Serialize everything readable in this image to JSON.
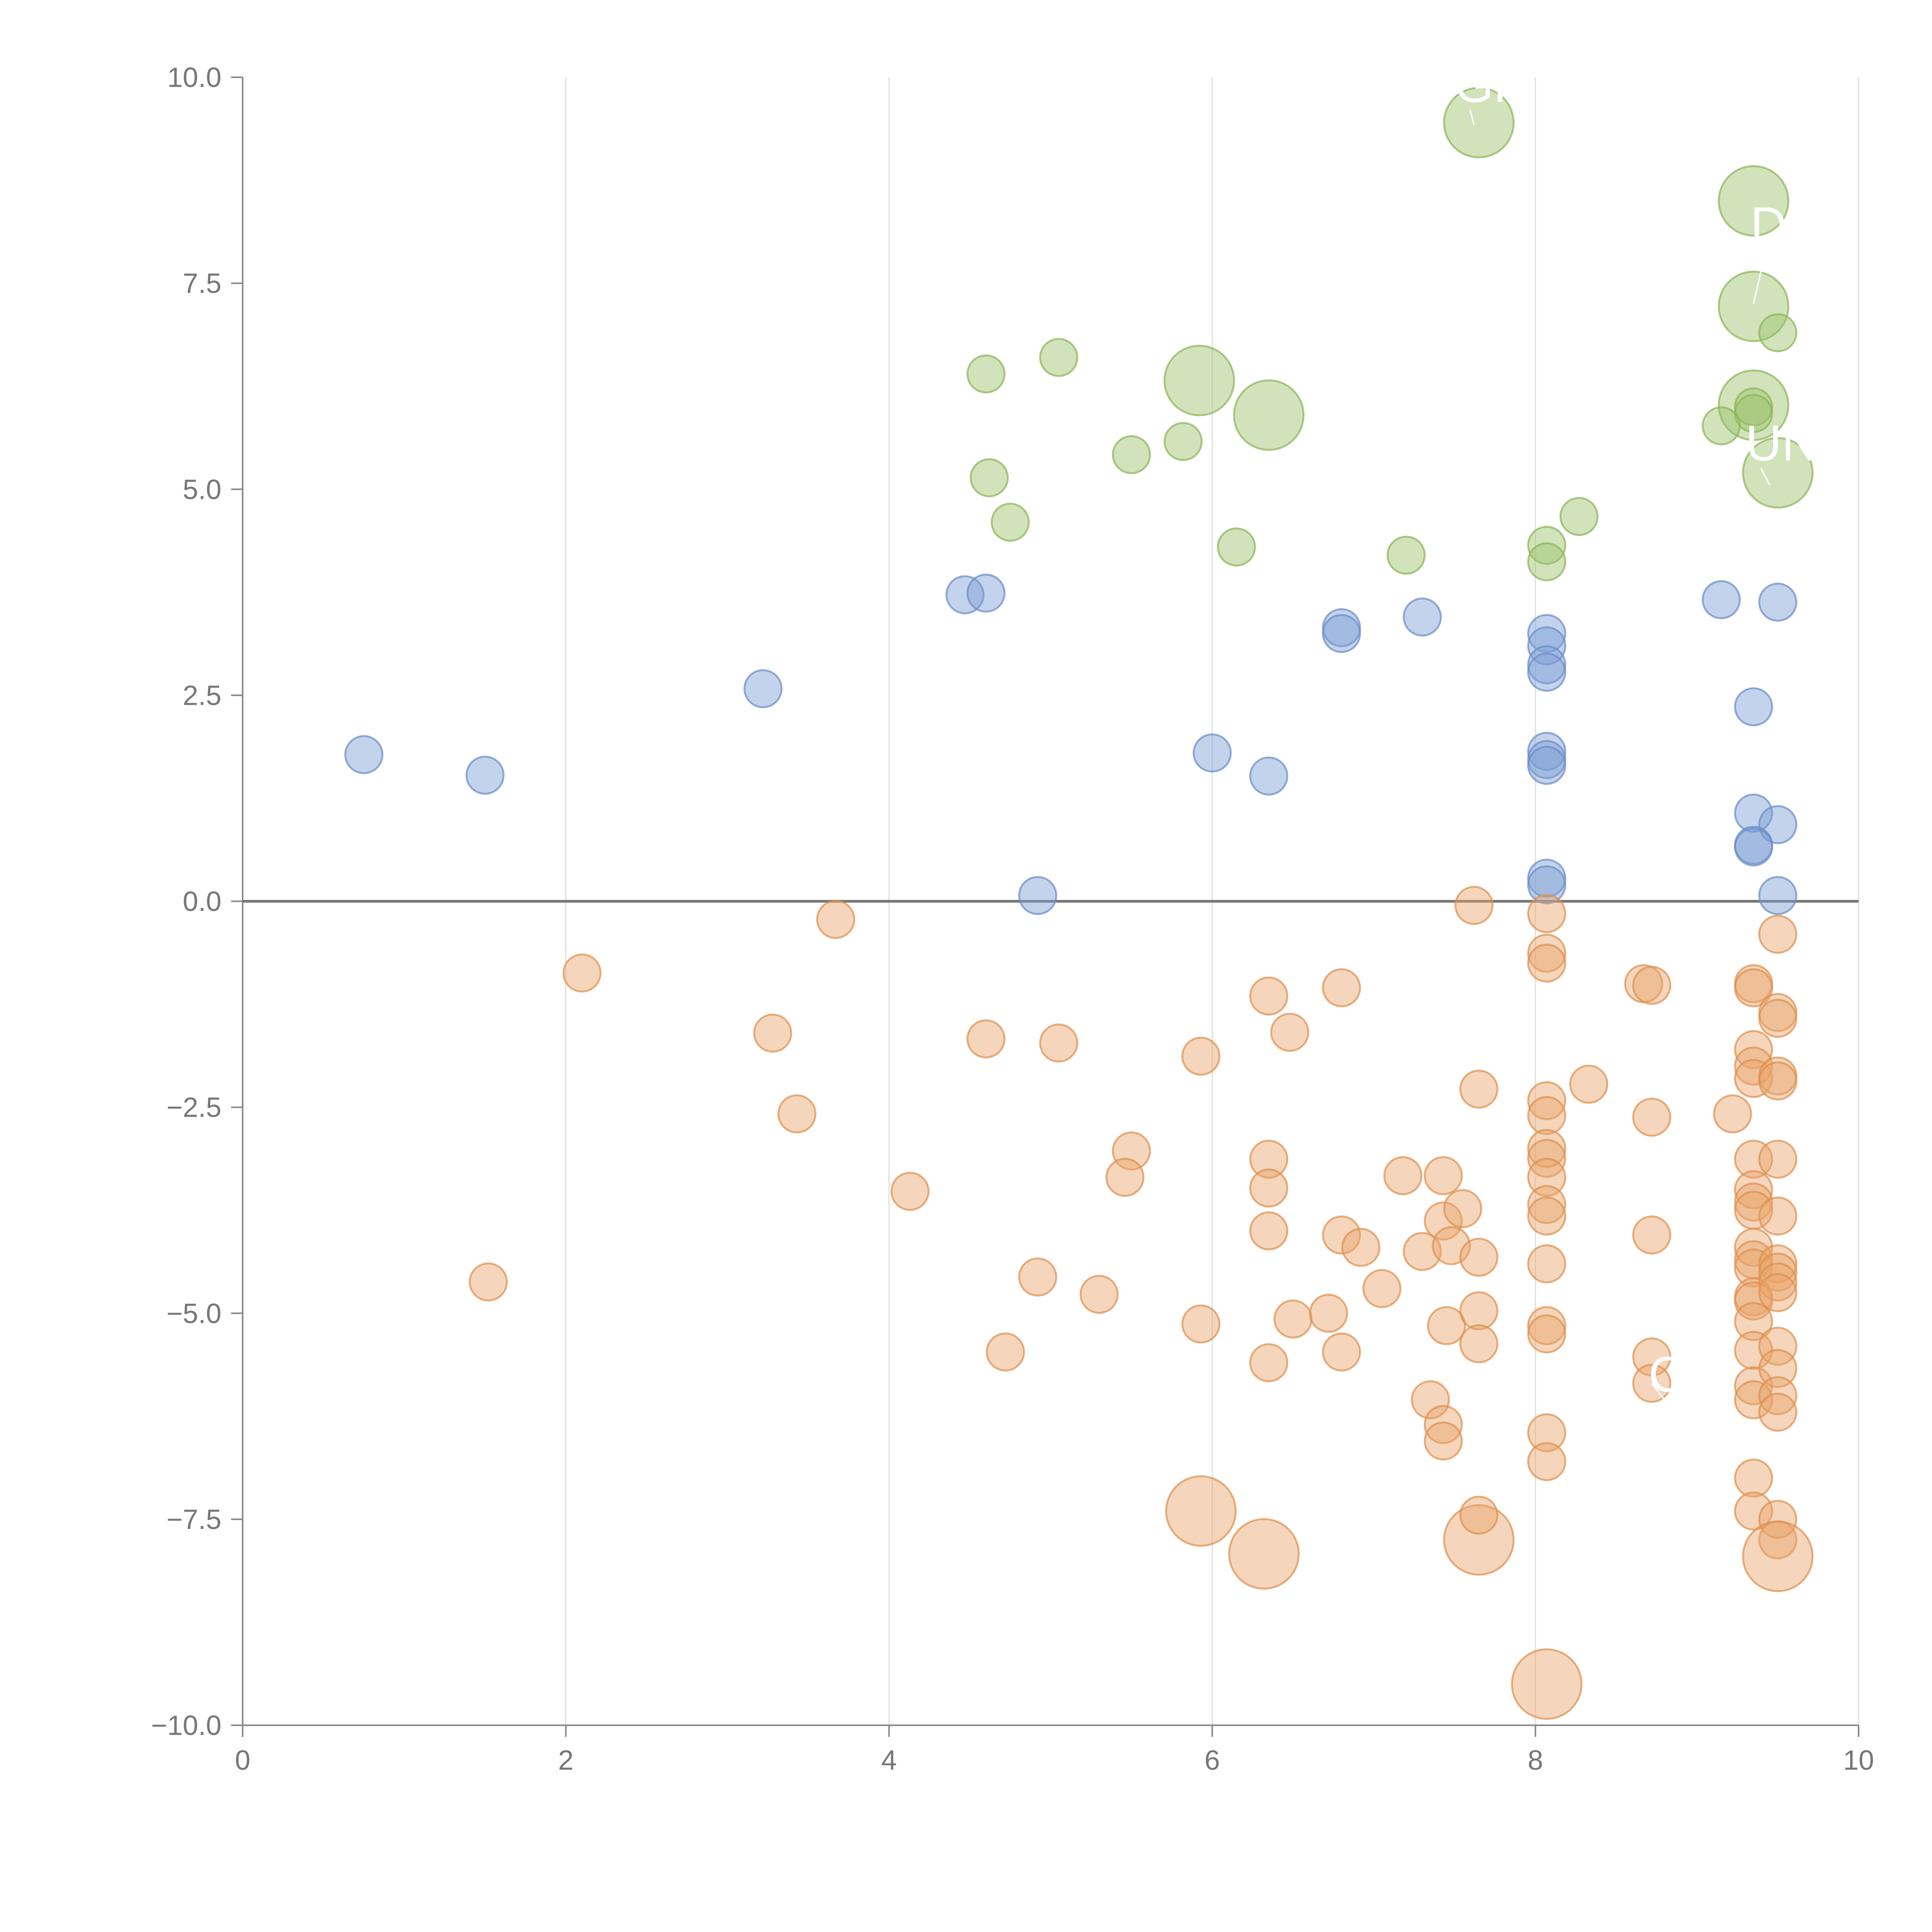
{
  "chart_data": {
    "type": "scatter",
    "title": "",
    "xlabel": "",
    "ylabel": "",
    "xlim": [
      0,
      10
    ],
    "ylim": [
      -10,
      10
    ],
    "grid": "vertical",
    "zero_line": true,
    "x_ticks": [
      {
        "value": 0,
        "label": "0"
      },
      {
        "value": 2,
        "label": "2"
      },
      {
        "value": 4,
        "label": "4"
      },
      {
        "value": 6,
        "label": "6"
      },
      {
        "value": 8,
        "label": "8"
      },
      {
        "value": 10,
        "label": "10"
      }
    ],
    "y_ticks": [
      {
        "value": 10,
        "label": "10.0"
      },
      {
        "value": 7.5,
        "label": "7.5"
      },
      {
        "value": 5,
        "label": "5.0"
      },
      {
        "value": 2.5,
        "label": "2.5"
      },
      {
        "value": 0,
        "label": "0.0"
      },
      {
        "value": -2.5,
        "label": "−2.5"
      },
      {
        "value": -5,
        "label": "−5.0"
      },
      {
        "value": -7.5,
        "label": "−7.5"
      },
      {
        "value": -10,
        "label": "−10.0"
      }
    ],
    "series": [
      {
        "name": "green",
        "color": "#9cc26a",
        "stroke": "#8ab356",
        "points": [
          [
            7.65,
            9.45,
            3
          ],
          [
            9.35,
            8.5,
            3
          ],
          [
            9.35,
            7.22,
            3
          ],
          [
            9.5,
            6.9,
            1
          ],
          [
            5.92,
            6.32,
            3
          ],
          [
            6.35,
            5.9,
            3
          ],
          [
            9.35,
            6.02,
            3
          ],
          [
            9.35,
            6.0,
            1
          ],
          [
            9.35,
            5.92,
            1
          ],
          [
            9.15,
            5.77,
            1
          ],
          [
            9.5,
            5.2,
            3
          ],
          [
            4.6,
            6.4,
            1
          ],
          [
            5.05,
            6.6,
            1
          ],
          [
            5.82,
            5.58,
            1
          ],
          [
            5.5,
            5.42,
            1
          ],
          [
            4.62,
            5.14,
            1
          ],
          [
            4.75,
            4.6,
            1
          ],
          [
            6.15,
            4.3,
            1
          ],
          [
            7.2,
            4.2,
            1
          ],
          [
            8.07,
            4.32,
            1
          ],
          [
            8.07,
            4.12,
            1
          ],
          [
            8.27,
            4.67,
            1
          ]
        ]
      },
      {
        "name": "blue",
        "color": "#7d9ed4",
        "stroke": "#6a8cc7",
        "points": [
          [
            0.75,
            1.78,
            1
          ],
          [
            1.5,
            1.53,
            1
          ],
          [
            3.22,
            2.58,
            1
          ],
          [
            4.47,
            3.72,
            1
          ],
          [
            4.6,
            3.74,
            1
          ],
          [
            4.92,
            0.07,
            1
          ],
          [
            6.0,
            1.8,
            1
          ],
          [
            6.35,
            1.52,
            1
          ],
          [
            6.8,
            3.32,
            1
          ],
          [
            6.8,
            3.25,
            1
          ],
          [
            7.3,
            3.45,
            1
          ],
          [
            8.07,
            3.25,
            1
          ],
          [
            8.07,
            3.1,
            1
          ],
          [
            8.07,
            2.87,
            1
          ],
          [
            8.07,
            2.78,
            1
          ],
          [
            8.07,
            1.82,
            1
          ],
          [
            8.07,
            1.72,
            1
          ],
          [
            8.07,
            1.65,
            1
          ],
          [
            8.07,
            0.28,
            1
          ],
          [
            8.07,
            0.2,
            1
          ],
          [
            9.15,
            3.66,
            1
          ],
          [
            9.5,
            3.63,
            1
          ],
          [
            9.35,
            2.36,
            1
          ],
          [
            9.35,
            1.07,
            1
          ],
          [
            9.5,
            0.93,
            1
          ],
          [
            9.35,
            0.68,
            1
          ],
          [
            9.35,
            0.66,
            1
          ],
          [
            9.5,
            0.07,
            1
          ]
        ]
      },
      {
        "name": "orange",
        "color": "#e9a46a",
        "stroke": "#de8f4d",
        "points": [
          [
            2.1,
            -0.87,
            1
          ],
          [
            3.67,
            -0.22,
            1
          ],
          [
            3.28,
            -1.6,
            1
          ],
          [
            3.43,
            -2.58,
            1
          ],
          [
            1.52,
            -4.62,
            1
          ],
          [
            4.13,
            -3.52,
            1
          ],
          [
            4.6,
            -1.67,
            1
          ],
          [
            5.05,
            -1.72,
            1
          ],
          [
            4.92,
            -4.56,
            1
          ],
          [
            4.72,
            -5.47,
            1
          ],
          [
            5.3,
            -4.77,
            1
          ],
          [
            5.5,
            -3.03,
            1
          ],
          [
            5.46,
            -3.35,
            1
          ],
          [
            5.93,
            -1.88,
            1
          ],
          [
            5.93,
            -5.13,
            1
          ],
          [
            6.35,
            -1.15,
            1
          ],
          [
            6.48,
            -1.59,
            1
          ],
          [
            6.8,
            -1.05,
            1
          ],
          [
            6.35,
            -3.13,
            1
          ],
          [
            6.35,
            -3.48,
            1
          ],
          [
            6.35,
            -4.0,
            1
          ],
          [
            6.35,
            -5.6,
            1
          ],
          [
            6.5,
            -5.07,
            1
          ],
          [
            6.8,
            -4.05,
            1
          ],
          [
            6.92,
            -4.2,
            1
          ],
          [
            7.05,
            -4.7,
            1
          ],
          [
            6.72,
            -5.0,
            1
          ],
          [
            6.8,
            -5.47,
            1
          ],
          [
            7.18,
            -3.33,
            1
          ],
          [
            7.3,
            -4.25,
            1
          ],
          [
            7.43,
            -3.33,
            1
          ],
          [
            7.43,
            -3.88,
            1
          ],
          [
            7.55,
            -3.73,
            1
          ],
          [
            7.48,
            -4.18,
            1
          ],
          [
            7.65,
            -4.32,
            1
          ],
          [
            7.65,
            -2.28,
            1
          ],
          [
            7.45,
            -5.15,
            1
          ],
          [
            7.65,
            -4.97,
            1
          ],
          [
            7.65,
            -5.37,
            1
          ],
          [
            7.35,
            -6.05,
            1
          ],
          [
            7.43,
            -6.35,
            1
          ],
          [
            7.43,
            -6.55,
            1
          ],
          [
            7.62,
            -0.05,
            1
          ],
          [
            8.07,
            -0.15,
            1
          ],
          [
            8.07,
            -0.63,
            1
          ],
          [
            8.07,
            -0.75,
            1
          ],
          [
            8.07,
            -2.42,
            1
          ],
          [
            8.07,
            -2.6,
            1
          ],
          [
            8.07,
            -3.0,
            1
          ],
          [
            8.07,
            -3.12,
            1
          ],
          [
            8.07,
            -3.35,
            1
          ],
          [
            8.07,
            -3.68,
            1
          ],
          [
            8.07,
            -3.82,
            1
          ],
          [
            8.07,
            -4.4,
            1
          ],
          [
            8.07,
            -5.15,
            1
          ],
          [
            8.07,
            -5.25,
            1
          ],
          [
            8.07,
            -6.45,
            1
          ],
          [
            8.07,
            -6.8,
            1
          ],
          [
            8.33,
            -2.22,
            1
          ],
          [
            8.67,
            -1.0,
            1
          ],
          [
            8.72,
            -1.02,
            1
          ],
          [
            8.72,
            -2.62,
            1
          ],
          [
            8.72,
            -4.05,
            1
          ],
          [
            8.72,
            -5.53,
            1
          ],
          [
            8.72,
            -5.85,
            1
          ],
          [
            9.22,
            -2.58,
            1
          ],
          [
            9.35,
            -1.0,
            1
          ],
          [
            9.35,
            -1.05,
            1
          ],
          [
            9.35,
            -1.8,
            1
          ],
          [
            9.35,
            -2.0,
            1
          ],
          [
            9.35,
            -2.15,
            1
          ],
          [
            9.35,
            -3.13,
            1
          ],
          [
            9.35,
            -3.5,
            1
          ],
          [
            9.35,
            -3.65,
            1
          ],
          [
            9.35,
            -3.75,
            1
          ],
          [
            9.35,
            -4.2,
            1
          ],
          [
            9.35,
            -4.35,
            1
          ],
          [
            9.35,
            -4.45,
            1
          ],
          [
            9.35,
            -4.8,
            1
          ],
          [
            9.35,
            -4.85,
            1
          ],
          [
            9.35,
            -5.1,
            1
          ],
          [
            9.35,
            -5.45,
            1
          ],
          [
            9.35,
            -5.88,
            1
          ],
          [
            9.35,
            -6.05,
            1
          ],
          [
            9.35,
            -7.0,
            1
          ],
          [
            9.35,
            -7.4,
            1
          ],
          [
            9.5,
            -0.4,
            1
          ],
          [
            9.5,
            -1.35,
            1
          ],
          [
            9.5,
            -1.42,
            1
          ],
          [
            9.5,
            -2.12,
            1
          ],
          [
            9.5,
            -2.18,
            1
          ],
          [
            9.5,
            -3.13,
            1
          ],
          [
            9.5,
            -3.82,
            1
          ],
          [
            9.5,
            -4.4,
            1
          ],
          [
            9.5,
            -4.5,
            1
          ],
          [
            9.5,
            -4.62,
            1
          ],
          [
            9.5,
            -4.75,
            1
          ],
          [
            9.5,
            -5.4,
            1
          ],
          [
            9.5,
            -5.67,
            1
          ],
          [
            9.5,
            -6.0,
            1
          ],
          [
            9.5,
            -6.2,
            1
          ],
          [
            9.5,
            -7.5,
            1
          ],
          [
            9.5,
            -7.75,
            1
          ],
          [
            9.5,
            -7.95,
            3
          ],
          [
            5.93,
            -7.4,
            3
          ],
          [
            6.32,
            -7.92,
            3
          ],
          [
            7.65,
            -7.75,
            3
          ],
          [
            7.65,
            -7.45,
            1
          ],
          [
            8.07,
            -9.5,
            3
          ]
        ]
      }
    ],
    "annotations": [
      {
        "text": "GF",
        "x": 7.5,
        "y": 9.7,
        "line_to": [
          7.62,
          9.42
        ]
      },
      {
        "text": "D",
        "x": 9.33,
        "y": 8.0,
        "line_to": [
          9.35,
          7.25
        ]
      },
      {
        "text": "UN",
        "x": 9.3,
        "y": 5.35,
        "line_to": [
          9.45,
          5.05
        ]
      },
      {
        "text": "C",
        "x": 8.7,
        "y": -5.95,
        "line_to": [
          8.72,
          -5.85
        ]
      }
    ],
    "annotation_line_color": "#ffffff"
  }
}
